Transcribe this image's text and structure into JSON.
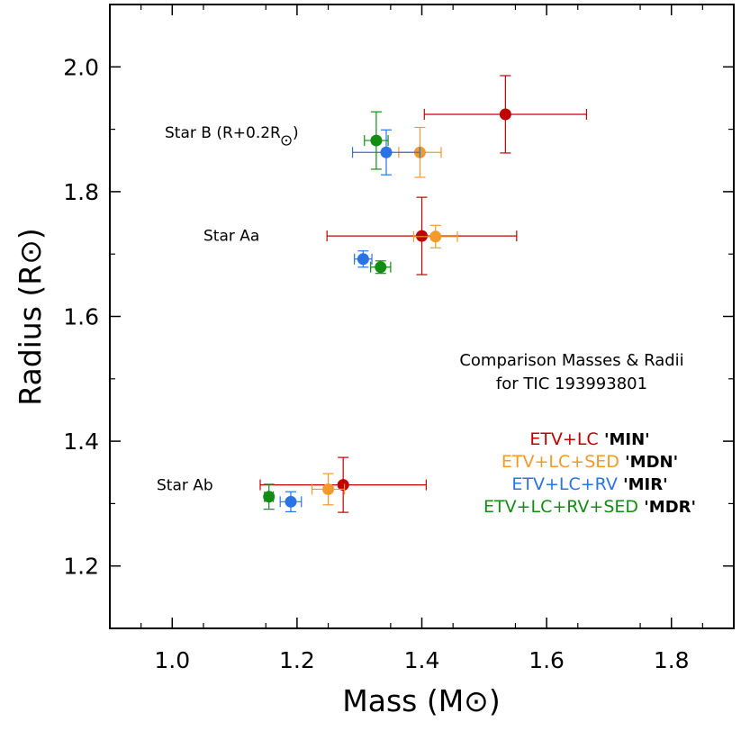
{
  "chart_data": {
    "type": "scatter",
    "title": "Comparison Masses & Radii",
    "subtitle": "for TIC 193993801",
    "xlabel": "Mass (M⊙)",
    "ylabel": "Radius (R⊙)",
    "xlim": [
      0.9,
      1.9
    ],
    "ylim": [
      1.1,
      2.1
    ],
    "xticks": [
      1.0,
      1.2,
      1.4,
      1.6,
      1.8
    ],
    "yticks": [
      1.2,
      1.4,
      1.6,
      1.8,
      2.0
    ],
    "xtick_labels": [
      "1.0",
      "1.2",
      "1.4",
      "1.6",
      "1.8"
    ],
    "ytick_labels": [
      "1.2",
      "1.4",
      "1.6",
      "1.8",
      "2.0"
    ],
    "grid": false,
    "star_labels": [
      {
        "name": "Star B",
        "suffix": " (R+0.2R",
        "close": ")",
        "mass": 1.22,
        "radius": 1.895
      },
      {
        "name": "Star Aa",
        "suffix": "",
        "close": "",
        "mass": 1.22,
        "radius": 1.73
      },
      {
        "name": "Star Ab",
        "suffix": "",
        "close": "",
        "mass": 1.14,
        "radius": 1.33
      }
    ],
    "legend": [
      {
        "label": "ETV+LC",
        "code": "'MIN'",
        "color": "#c00000"
      },
      {
        "label": "ETV+LC+SED",
        "code": "'MDN'",
        "color": "#f39a2a"
      },
      {
        "label": "ETV+LC+RV",
        "code": "'MIR'",
        "color": "#2a72e8"
      },
      {
        "label": "ETV+LC+RV+SED",
        "code": "'MDR'",
        "color": "#128c12"
      }
    ],
    "series": [
      {
        "name": "ETV+LC 'MIN'",
        "color": "#c00000",
        "points": [
          {
            "star": "B",
            "x": 1.534,
            "y": 1.924,
            "xerr": 0.13,
            "yerr": 0.062
          },
          {
            "star": "Aa",
            "x": 1.4,
            "y": 1.729,
            "xerr": 0.152,
            "yerr": 0.062
          },
          {
            "star": "Ab",
            "x": 1.274,
            "y": 1.33,
            "xerr": 0.133,
            "yerr": 0.044
          }
        ]
      },
      {
        "name": "ETV+LC+SED 'MDN'",
        "color": "#f39a2a",
        "points": [
          {
            "star": "B",
            "x": 1.397,
            "y": 1.863,
            "xerr": 0.034,
            "yerr": 0.04
          },
          {
            "star": "Aa",
            "x": 1.422,
            "y": 1.728,
            "xerr": 0.035,
            "yerr": 0.018
          },
          {
            "star": "Ab",
            "x": 1.25,
            "y": 1.323,
            "xerr": 0.026,
            "yerr": 0.025
          }
        ]
      },
      {
        "name": "ETV+LC+RV 'MIR'",
        "color": "#2a72e8",
        "points": [
          {
            "star": "B",
            "x": 1.343,
            "y": 1.863,
            "xerr": 0.054,
            "yerr": 0.036
          },
          {
            "star": "Aa",
            "x": 1.306,
            "y": 1.692,
            "xerr": 0.014,
            "yerr": 0.013
          },
          {
            "star": "Ab",
            "x": 1.19,
            "y": 1.303,
            "xerr": 0.017,
            "yerr": 0.016
          }
        ]
      },
      {
        "name": "ETV+LC+RV+SED 'MDR'",
        "color": "#128c12",
        "points": [
          {
            "star": "B",
            "x": 1.327,
            "y": 1.882,
            "xerr": 0.019,
            "yerr": 0.046
          },
          {
            "star": "Aa",
            "x": 1.334,
            "y": 1.679,
            "xerr": 0.016,
            "yerr": 0.01
          },
          {
            "star": "Ab",
            "x": 1.155,
            "y": 1.311,
            "xerr": 0.007,
            "yerr": 0.02
          }
        ]
      }
    ]
  }
}
